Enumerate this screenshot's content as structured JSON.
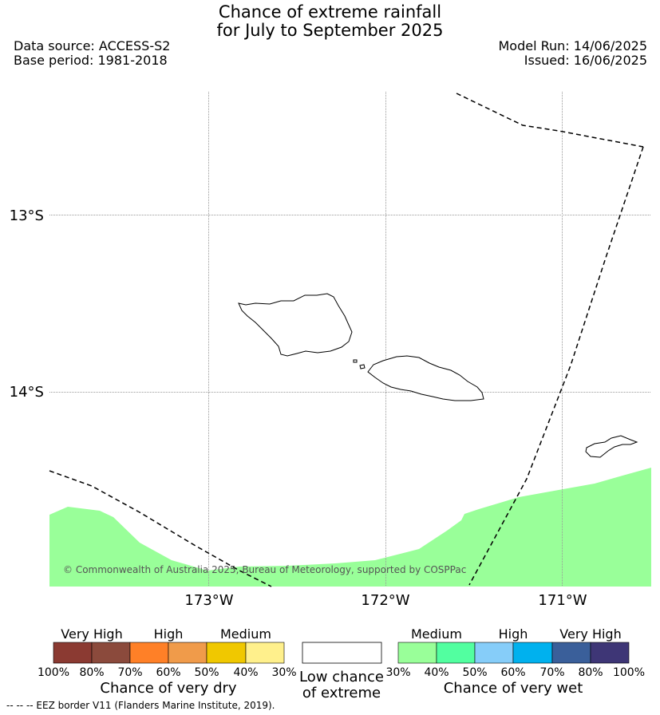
{
  "header": {
    "title_line1": "Chance of extreme rainfall",
    "title_line2": "for July to September 2025",
    "data_source": "Data source: ACCESS-S2",
    "base_period": "Base period: 1981-2018",
    "model_run": "Model Run: 14/06/2025",
    "issued": "Issued: 16/06/2025"
  },
  "map": {
    "lat_ticks": [
      "13°S",
      "14°S"
    ],
    "lon_ticks": [
      "173°W",
      "172°W",
      "171°W"
    ],
    "copyright": "© Commonwealth of Australia 2025, Bureau of Meteorology, supported by COSPPac",
    "colors": {
      "wet_medium_shading": "#99ff99",
      "eez_line": "#000000",
      "gridline": "#999999"
    }
  },
  "legend": {
    "dry": {
      "categories": [
        "Very High",
        "High",
        "Medium"
      ],
      "percent_labels": [
        "100%",
        "80%",
        "70%",
        "60%",
        "50%",
        "40%",
        "30%"
      ],
      "colors": [
        "#8b3a32",
        "#8b4a3c",
        "#ff8027",
        "#f09b4a",
        "#f0c800",
        "#fff08c"
      ],
      "title": "Chance of very dry"
    },
    "neutral": {
      "label_line1": "Low chance",
      "label_line2": "of extreme",
      "color": "#ffffff"
    },
    "wet": {
      "categories": [
        "Medium",
        "High",
        "Very High"
      ],
      "percent_labels": [
        "30%",
        "40%",
        "50%",
        "60%",
        "70%",
        "80%",
        "100%"
      ],
      "colors": [
        "#99ff99",
        "#52ffa0",
        "#86cdf9",
        "#00b1ee",
        "#3a5f9a",
        "#3e3676"
      ],
      "title": "Chance of very wet"
    }
  },
  "footnote": "--  --  -- EEZ border V11 (Flanders Marine Institute, 2019)."
}
